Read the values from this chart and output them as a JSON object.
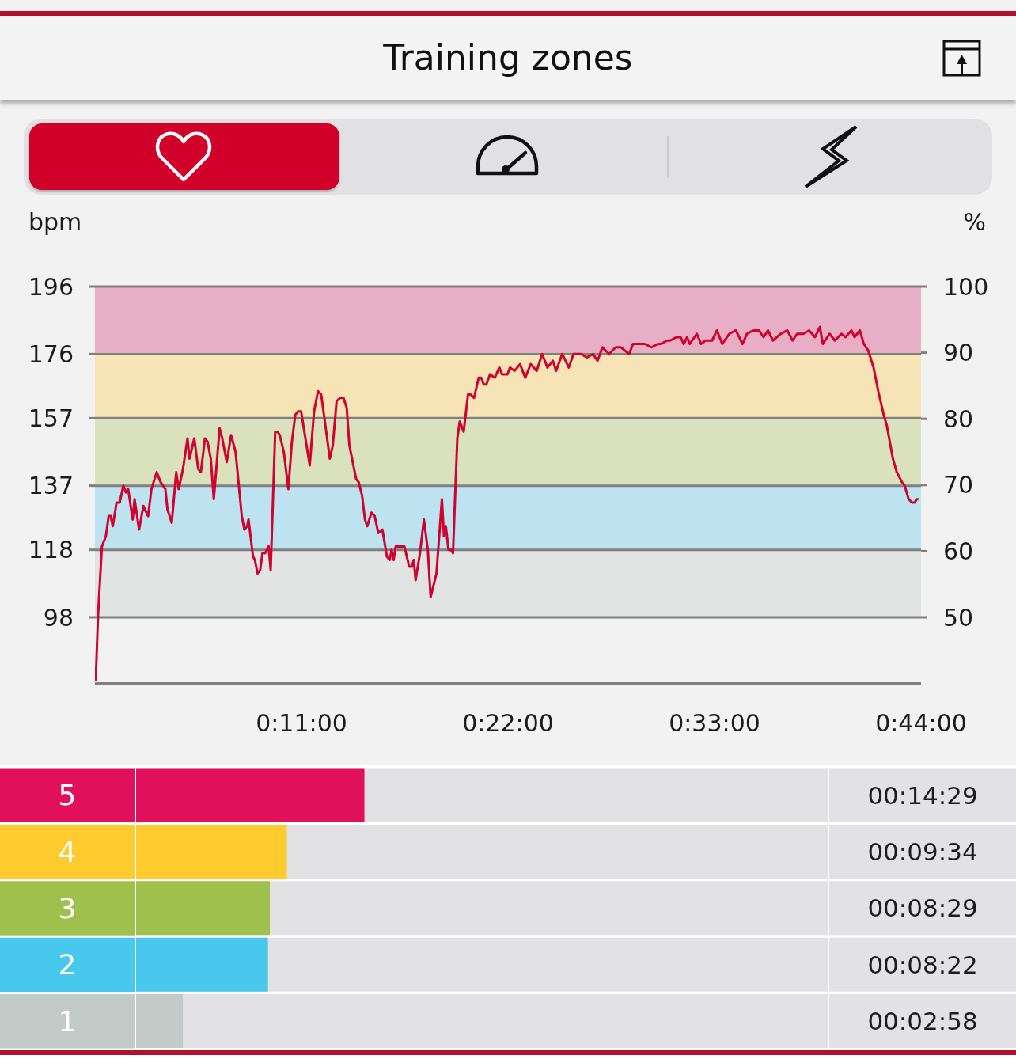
{
  "chart_data": [
    {
      "type": "line",
      "title": "Training zones",
      "ylabel": "bpm",
      "y2label": "%",
      "x": [
        0.04,
        0.16,
        0.37,
        0.58,
        0.73,
        0.84,
        0.95,
        1.15,
        1.22,
        1.32,
        1.51,
        1.65,
        1.77,
        2.01,
        2.11,
        2.35,
        2.58,
        2.83,
        3.01,
        3.29,
        3.5,
        3.75,
        3.86,
        4.09,
        4.33,
        4.46,
        4.69,
        4.93,
        5.04,
        5.29,
        5.5,
        5.64,
        5.86,
        6.0,
        6.17,
        6.33,
        6.64,
        6.78,
        7.02,
        7.25,
        7.49,
        7.82,
        7.96,
        8.11,
        8.18,
        8.42,
        8.52,
        8.66,
        8.8,
        8.92,
        9.06,
        9.16,
        9.25,
        9.36,
        9.6,
        9.73,
        9.84,
        10.06,
        10.3,
        10.49,
        10.67,
        10.81,
        10.98,
        11.24,
        11.44,
        11.67,
        11.88,
        12.05,
        12.27,
        12.51,
        12.67,
        12.87,
        13.05,
        13.24,
        13.41,
        13.55,
        13.91,
        14.05,
        14.23,
        14.38,
        14.5,
        14.73,
        14.9,
        15.09,
        15.31,
        15.55,
        15.7,
        15.8,
        15.91,
        16.02,
        16.27,
        16.48,
        16.74,
        16.88,
        16.98,
        17.08,
        17.31,
        17.52,
        17.73,
        17.88,
        18.19,
        18.48,
        18.59,
        18.69,
        18.83,
        18.97,
        19.07,
        19.3,
        19.43,
        19.64,
        19.87,
        20.01,
        20.19,
        20.44,
        20.57,
        20.71,
        20.85,
        21.04,
        21.3,
        21.54,
        21.68,
        21.97,
        22.11,
        22.35,
        22.64,
        22.92,
        23.21,
        23.53,
        23.82,
        24.1,
        24.39,
        24.56,
        24.89,
        25.24,
        25.49,
        25.89,
        26.2,
        26.53,
        26.77,
        27.03,
        27.38,
        27.74,
        28.02,
        28.45,
        28.66,
        28.94,
        29.29,
        29.64,
        29.99,
        30.13,
        30.49,
        30.63,
        30.98,
        31.19,
        31.36,
        31.54,
        31.68,
        32.06,
        32.28,
        32.52,
        32.87,
        33.13,
        33.41,
        33.79,
        34.14,
        34.49,
        34.73,
        35.05,
        35.37,
        35.61,
        35.85,
        36.11,
        36.53,
        36.88,
        37.16,
        37.4,
        37.72,
        38.04,
        38.35,
        38.61,
        38.77,
        39.13,
        39.41,
        39.76,
        39.97,
        40.29,
        40.46,
        40.74,
        40.95,
        41.19,
        41.47,
        41.72,
        42.01,
        42.17,
        42.5,
        42.71,
        42.99,
        43.13,
        43.34,
        43.52,
        43.66,
        43.76,
        43.86
      ],
      "series": [
        {
          "color": "#d0022e",
          "values": [
            79,
            98,
            119,
            122,
            128,
            128,
            125,
            132,
            132,
            132,
            137,
            135,
            136,
            127,
            133,
            124,
            131,
            128,
            136,
            141,
            138,
            136,
            130,
            126,
            141,
            136,
            142,
            151,
            145,
            151,
            142,
            141,
            151,
            150,
            145,
            133,
            154,
            151,
            144,
            152,
            147,
            128,
            124,
            125,
            127,
            116,
            115,
            111,
            112,
            117,
            117,
            118,
            119,
            112,
            153,
            153,
            152,
            147,
            136,
            150,
            158,
            159,
            159,
            150,
            143,
            159,
            165,
            164,
            155,
            145,
            149,
            162,
            163,
            163,
            160,
            149,
            139,
            138,
            134,
            127,
            125,
            129,
            128,
            123,
            124,
            116,
            115,
            118,
            115,
            119,
            119,
            119,
            113,
            113,
            115,
            109,
            117,
            127,
            118,
            104,
            111,
            133,
            122,
            125,
            118,
            118,
            117,
            151,
            156,
            153,
            164,
            164,
            163,
            169,
            169,
            167,
            167,
            170,
            169,
            172,
            170,
            170,
            172,
            171,
            173,
            169,
            173,
            171,
            176,
            172,
            174,
            171,
            176,
            172,
            176,
            176,
            175,
            176,
            174,
            178,
            176,
            178,
            178,
            176,
            179,
            179,
            179,
            178,
            179,
            179,
            180,
            180,
            181,
            181,
            179,
            181,
            179,
            182,
            179,
            180,
            180,
            183,
            179,
            182,
            183,
            179,
            182,
            183,
            183,
            181,
            183,
            180,
            182,
            183,
            180,
            182,
            182,
            183,
            181,
            184,
            179,
            182,
            180,
            182,
            181,
            183,
            181,
            183,
            179,
            177,
            172,
            165,
            158,
            155,
            145,
            141,
            138,
            137,
            133,
            132,
            132,
            133,
            133
          ]
        }
      ],
      "xlim": [
        0,
        44
      ],
      "xticks": [
        {
          "value": 11,
          "label": "0:11:00"
        },
        {
          "value": 22,
          "label": "0:22:00"
        },
        {
          "value": 33,
          "label": "0:33:00"
        },
        {
          "value": 44,
          "label": "0:44:00"
        }
      ],
      "ylim": [
        78.4,
        196
      ],
      "yticks": [
        98,
        118,
        137,
        157,
        176,
        196
      ],
      "y2lim": [
        40,
        100
      ],
      "y2ticks": [
        50,
        60,
        70,
        80,
        90,
        100
      ],
      "bands": [
        {
          "axis": "y2",
          "from": 50,
          "to": 60,
          "color": "#e2e3e3"
        },
        {
          "axis": "y2",
          "from": 60,
          "to": 70,
          "color": "#bee3f0"
        },
        {
          "axis": "y2",
          "from": 70,
          "to": 80,
          "color": "#d9e1bd"
        },
        {
          "axis": "y2",
          "from": 80,
          "to": 90,
          "color": "#f6e4b6"
        },
        {
          "axis": "y2",
          "from": 90,
          "to": 100,
          "color": "#e8aec6"
        }
      ],
      "grid": "y"
    },
    {
      "type": "bar",
      "orientation": "horizontal",
      "categories": [
        "5",
        "4",
        "3",
        "2",
        "1"
      ],
      "values": [
        869,
        574,
        509,
        502,
        178
      ],
      "colors": [
        "#e0115a",
        "#ffcb2e",
        "#a0c04d",
        "#48c8ec",
        "#c3cbc9"
      ],
      "value_labels": [
        "00:14:29",
        "00:09:34",
        "00:08:29",
        "00:08:22",
        "00:02:58"
      ],
      "xlim": [
        0,
        2632
      ],
      "tick_labels": "y"
    }
  ]
}
